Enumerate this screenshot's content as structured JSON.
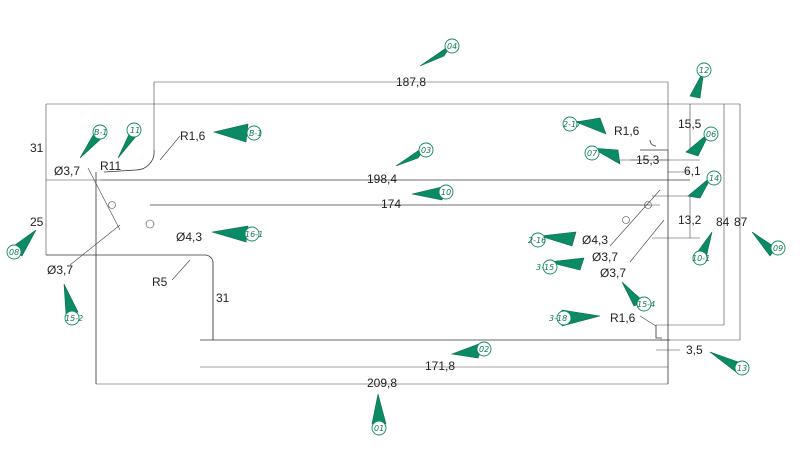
{
  "dimensions": {
    "top_span": "187,8",
    "centerline_span": "198,4",
    "hole_span": "174",
    "lower_span": "171,8",
    "bottom_span": "209,8",
    "left_top_height": "31",
    "left_mid_height": "25",
    "bottom_step_height": "31",
    "right_height_inner": "84",
    "right_height_outer": "87",
    "radius_left_top": "R1,6",
    "radius_left_arc": "R11",
    "radius_left_step": "R5",
    "radius_right_top": "R1,6",
    "radius_right_bottom": "R1,6",
    "dia_left_top": "Ø3,7",
    "dia_left_bottom": "Ø3,7",
    "dia_left_hole": "Ø4,3",
    "dia_right_hole": "Ø4,3",
    "dia_right_a": "Ø3,7",
    "dia_right_b": "Ø3,7",
    "right_top_offset": "15,5",
    "right_offset_a": "15,3",
    "right_offset_b": "6,1",
    "right_offset_c": "13,2",
    "right_bottom_offset": "3,5"
  },
  "balloons": {
    "b_top": "04",
    "b_left_a": "B-1",
    "b_left_b": "11",
    "b_left_c": "B-1",
    "b_center_a": "03",
    "b_center_b": "10",
    "b_left_hole": "16-1",
    "b_left_edge": "08",
    "b_left_lower": "15-2",
    "b_bottom_mid": "02",
    "b_bottom": "01",
    "b_right_top": "12",
    "b_right_a": "2-17",
    "b_right_b": "07",
    "b_right_c": "06",
    "b_right_d": "14",
    "b_right_e": "2-16",
    "b_right_f": "3-15",
    "b_right_g": "15-4",
    "b_right_h": "10-1",
    "b_right_edge": "09",
    "b_right_bottom_a": "3-18",
    "b_right_bottom_b": "13"
  },
  "colors": {
    "marker": "#0b8a66",
    "ink": "#333333"
  }
}
